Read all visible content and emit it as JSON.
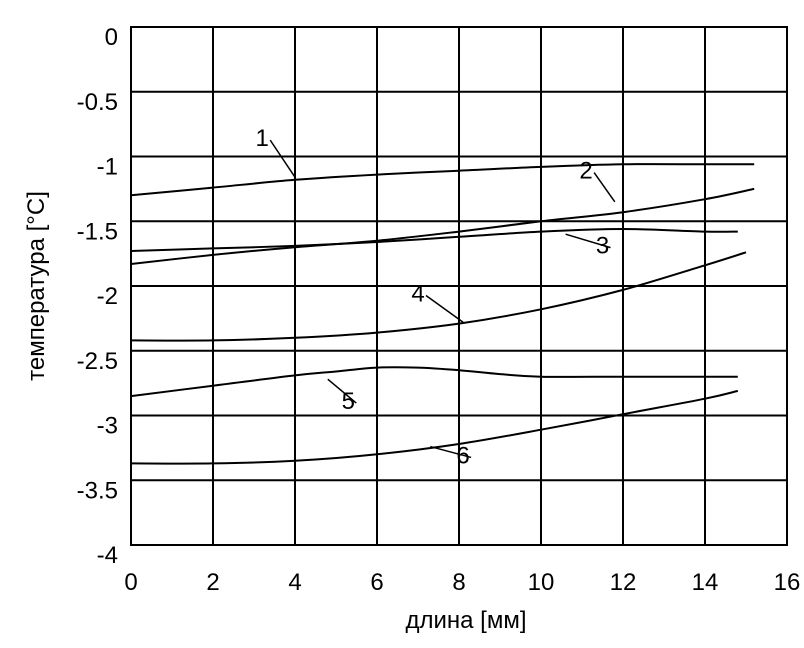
{
  "chart_data": {
    "type": "line",
    "title": "",
    "xlabel": "длина  [мм]",
    "ylabel": "температура  [°С]",
    "xlim": [
      0,
      16
    ],
    "ylim": [
      -4,
      0
    ],
    "grid": true,
    "x_ticks": [
      "0",
      "2",
      "4",
      "6",
      "8",
      "10",
      "12",
      "14",
      "16"
    ],
    "y_ticks": [
      "0",
      "-0.5",
      "-1",
      "-1.5",
      "-2",
      "-2.5",
      "-3",
      "-3.5",
      "-4"
    ],
    "series": [
      {
        "name": "1",
        "x": [
          0,
          2,
          4,
          6,
          8,
          10,
          12,
          14,
          15.2
        ],
        "y": [
          -1.3,
          -1.24,
          -1.18,
          -1.14,
          -1.11,
          -1.08,
          -1.06,
          -1.06,
          -1.06
        ]
      },
      {
        "name": "2",
        "x": [
          0,
          2,
          4,
          6,
          8,
          10,
          12,
          14,
          15.2
        ],
        "y": [
          -1.83,
          -1.76,
          -1.7,
          -1.65,
          -1.58,
          -1.5,
          -1.43,
          -1.33,
          -1.25
        ]
      },
      {
        "name": "3",
        "x": [
          0,
          2,
          4,
          6,
          8,
          10,
          12,
          14,
          14.8
        ],
        "y": [
          -1.73,
          -1.71,
          -1.69,
          -1.66,
          -1.62,
          -1.58,
          -1.56,
          -1.58,
          -1.58
        ]
      },
      {
        "name": "4",
        "x": [
          0,
          2,
          4,
          6,
          8,
          10,
          12,
          14,
          15
        ],
        "y": [
          -2.42,
          -2.42,
          -2.4,
          -2.36,
          -2.29,
          -2.18,
          -2.03,
          -1.84,
          -1.74
        ]
      },
      {
        "name": "5",
        "x": [
          0,
          2,
          4,
          5,
          6,
          7,
          8,
          9,
          10,
          12,
          14,
          14.8
        ],
        "y": [
          -2.85,
          -2.77,
          -2.69,
          -2.66,
          -2.63,
          -2.63,
          -2.65,
          -2.68,
          -2.7,
          -2.7,
          -2.7,
          -2.7
        ]
      },
      {
        "name": "6",
        "x": [
          0,
          2,
          4,
          6,
          8,
          10,
          12,
          14,
          14.8
        ],
        "y": [
          -3.37,
          -3.37,
          -3.35,
          -3.3,
          -3.22,
          -3.11,
          -2.99,
          -2.87,
          -2.81
        ]
      }
    ],
    "series_labels": [
      {
        "text": "1",
        "x": 3.2,
        "y": -0.92,
        "tx": 4.0,
        "ty": -1.16
      },
      {
        "text": "2",
        "x": 11.1,
        "y": -1.17,
        "tx": 11.8,
        "ty": -1.35
      },
      {
        "text": "3",
        "x": 11.5,
        "y": -1.75,
        "tx": 10.6,
        "ty": -1.6
      },
      {
        "text": "4",
        "x": 7.0,
        "y": -2.12,
        "tx": 8.1,
        "ty": -2.28
      },
      {
        "text": "5",
        "x": 5.3,
        "y": -2.95,
        "tx": 4.8,
        "ty": -2.72
      },
      {
        "text": "6",
        "x": 8.1,
        "y": -3.37,
        "tx": 7.3,
        "ty": -3.24
      }
    ]
  }
}
